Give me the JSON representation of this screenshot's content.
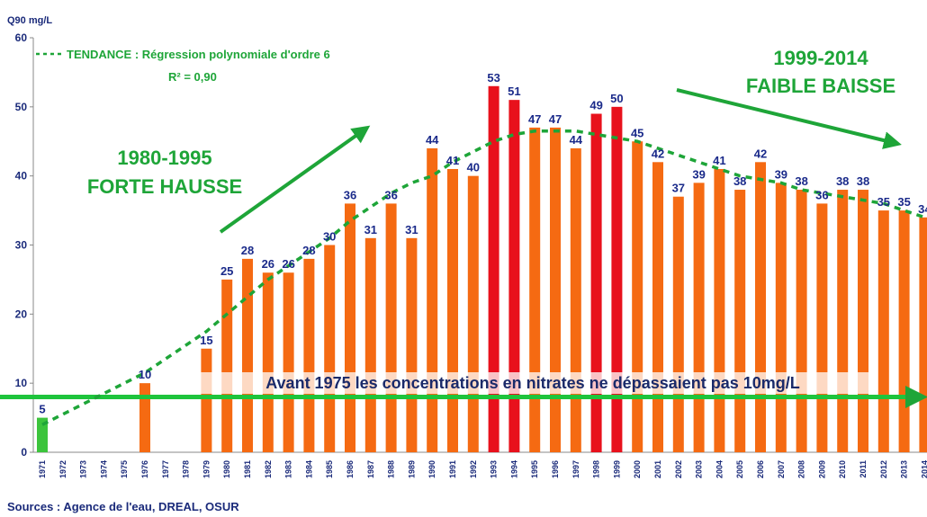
{
  "chart_data": {
    "type": "bar",
    "y_label": "Q90 mg/L",
    "categories": [
      "1971",
      "1972",
      "1973",
      "1974",
      "1975",
      "1976",
      "1977",
      "1978",
      "1979",
      "1980",
      "1981",
      "1982",
      "1983",
      "1984",
      "1985",
      "1986",
      "1987",
      "1988",
      "1989",
      "1990",
      "1991",
      "1992",
      "1993",
      "1994",
      "1995",
      "1996",
      "1997",
      "1998",
      "1999",
      "2000",
      "2001",
      "2002",
      "2003",
      "2004",
      "2005",
      "2006",
      "2007",
      "2008",
      "2009",
      "2010",
      "2011",
      "2012",
      "2013",
      "2014"
    ],
    "values": [
      5,
      null,
      null,
      null,
      null,
      10,
      null,
      null,
      15,
      25,
      28,
      26,
      26,
      28,
      30,
      36,
      31,
      36,
      31,
      44,
      41,
      40,
      53,
      51,
      47,
      47,
      44,
      49,
      50,
      45,
      42,
      37,
      39,
      41,
      38,
      42,
      39,
      38,
      36,
      38,
      38,
      35,
      35,
      34
    ],
    "colors": [
      "#3cc43c",
      null,
      null,
      null,
      null,
      "#f56a12",
      null,
      null,
      "#f56a12",
      "#f56a12",
      "#f56a12",
      "#f56a12",
      "#f56a12",
      "#f56a12",
      "#f56a12",
      "#f56a12",
      "#f56a12",
      "#f56a12",
      "#f56a12",
      "#f56a12",
      "#f56a12",
      "#f56a12",
      "#e8111c",
      "#e8111c",
      "#f56a12",
      "#f56a12",
      "#f56a12",
      "#e8111c",
      "#e8111c",
      "#f56a12",
      "#f56a12",
      "#f56a12",
      "#f56a12",
      "#f56a12",
      "#f56a12",
      "#f56a12",
      "#f56a12",
      "#f56a12",
      "#f56a12",
      "#f56a12",
      "#f56a12",
      "#f56a12",
      "#f56a12",
      "#f56a12"
    ],
    "trend": {
      "name": "TENDANCE : Régression polynomiale d'ordre 6",
      "r2": "R² = 0,90",
      "color": "#1ea538",
      "values": [
        4,
        5.5,
        7,
        8.5,
        10,
        11.5,
        13.5,
        15.5,
        17.5,
        20,
        22.5,
        25,
        27,
        29,
        31,
        33.5,
        35.5,
        37.5,
        39,
        40,
        42,
        43.5,
        45,
        46,
        46.5,
        46.5,
        46.5,
        46,
        45.5,
        45,
        44,
        43,
        42,
        41,
        40,
        39.5,
        39,
        38,
        37.5,
        37,
        36.5,
        36,
        35,
        34
      ]
    },
    "annotations": [
      "1980-1995",
      "FORTE HAUSSE",
      "1999-2014",
      "FAIBLE BAISSE",
      "Avant 1975 les concentrations en nitrates ne dépassaient pas 10mg/L"
    ],
    "source": "Sources : Agence de l'eau, DREAL, OSUR",
    "ylim": [
      0,
      60
    ],
    "yticks": [
      0,
      10,
      20,
      30,
      40,
      50,
      60
    ]
  }
}
